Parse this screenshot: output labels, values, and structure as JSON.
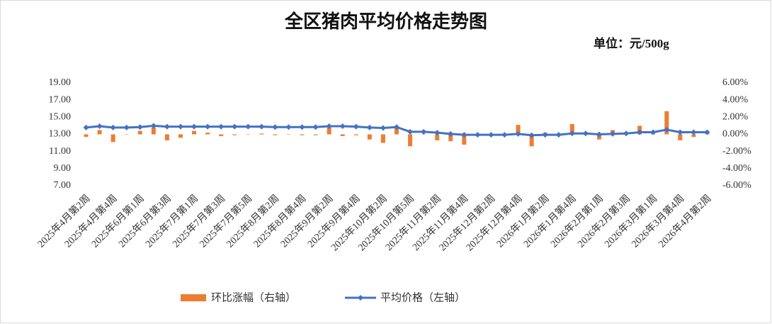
{
  "chart_data": {
    "type": "combo",
    "title": "全区猪肉平均价格走势图",
    "unit_label": "单位：元/500g",
    "categories": [
      "2025年4月第2周",
      null,
      "2025年4月第4周",
      null,
      "2025年6月第1周",
      null,
      "2025年6月第3周",
      null,
      "2025年7月第1周",
      null,
      "2025年7月第3周",
      null,
      "2025年7月第5周",
      null,
      "2025年8月第2周",
      null,
      "2025年8月第4周",
      null,
      "2025年9月第2周",
      null,
      "2025年9月第4周",
      null,
      "2025年10月第2周",
      null,
      "2025年10月第5周",
      null,
      "2025年11月第2周",
      null,
      "2025年11月第4周",
      null,
      "2025年12月第2周",
      null,
      "2025年12月第4周",
      null,
      "2026年1月第2周",
      null,
      "2026年1月第4周",
      null,
      "2026年2月第1周",
      null,
      "2026年2月第3周",
      null,
      "2026年3月第1周",
      null,
      "2026年3月第4周",
      null,
      "2026年4月第2周"
    ],
    "series": [
      {
        "name": "环比涨幅（右轴）",
        "type": "bar",
        "axis": "y2",
        "color": "#ED7D31",
        "values": [
          -0.3,
          0.5,
          -0.9,
          0,
          0.4,
          0.8,
          -0.7,
          -0.4,
          0.4,
          0.2,
          -0.2,
          -0.1,
          0,
          0.1,
          -0.1,
          0,
          -0.1,
          -0.1,
          0.8,
          -0.2,
          -0.1,
          -0.6,
          -1.0,
          0.7,
          -1.4,
          0,
          -0.7,
          -0.8,
          -1.2,
          0,
          0,
          0,
          1.1,
          -1.4,
          0.2,
          0,
          1.2,
          0,
          -0.6,
          0.5,
          0.2,
          1.0,
          0.1,
          2.7,
          -0.7,
          -0.3,
          0.1
        ]
      },
      {
        "name": "平均价格（左轴）",
        "type": "line",
        "color": "#4472C4",
        "values": [
          13.8,
          13.95,
          13.8,
          13.8,
          13.85,
          14.0,
          13.9,
          13.9,
          13.9,
          13.9,
          13.9,
          13.9,
          13.9,
          13.9,
          13.85,
          13.85,
          13.85,
          13.85,
          13.95,
          13.95,
          13.9,
          13.8,
          13.75,
          13.85,
          13.3,
          13.3,
          13.2,
          13.05,
          12.95,
          12.95,
          12.95,
          12.95,
          13.05,
          12.9,
          12.95,
          12.95,
          13.1,
          13.1,
          13.0,
          13.05,
          13.1,
          13.25,
          13.25,
          13.55,
          13.25,
          13.25,
          13.25
        ]
      }
    ],
    "ylim": [
      7,
      19
    ],
    "yticks": [
      {
        "value": 7,
        "label": "7.00"
      },
      {
        "value": 9,
        "label": "9.00"
      },
      {
        "value": 11,
        "label": "11.00"
      },
      {
        "value": 13,
        "label": "13.00"
      },
      {
        "value": 15,
        "label": "15.00"
      },
      {
        "value": 17,
        "label": "17.00"
      },
      {
        "value": 19,
        "label": "19.00"
      }
    ],
    "y2lim": [
      -6,
      6
    ],
    "y2ticks": [
      {
        "value": -6,
        "label": "-6.00%"
      },
      {
        "value": -4,
        "label": "-4.00%"
      },
      {
        "value": -2,
        "label": "-2.00%"
      },
      {
        "value": 0,
        "label": "0.00%"
      },
      {
        "value": 2,
        "label": "2.00%"
      },
      {
        "value": 4,
        "label": "4.00%"
      },
      {
        "value": 6,
        "label": "6.00%"
      }
    ],
    "grid": false,
    "legend": "bottom"
  }
}
